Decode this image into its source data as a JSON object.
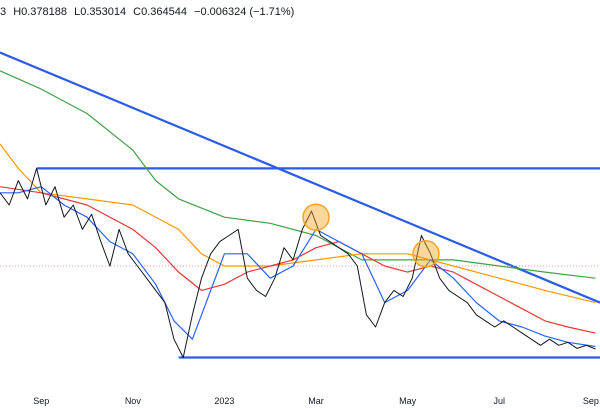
{
  "legend": {
    "open_fragment": "3",
    "high": "H0.378188",
    "low": "L0.353014",
    "close": "C0.364544",
    "change": "−0.006324 (−1.71%)"
  },
  "colors": {
    "price": "#131722",
    "ma_fast": "#2962ff",
    "ma_mid": "#e53935",
    "ma_slow": "#ff9800",
    "ma_long": "#43a047",
    "trendline": "#2a5ce8",
    "highlight": "#f5a623",
    "reference_line": "#ef9a9a"
  },
  "chart_data": {
    "type": "line",
    "title": "",
    "xlabel": "",
    "ylabel": "",
    "x_ticks": [
      "Sep",
      "Nov",
      "2023",
      "Mar",
      "May",
      "Jul",
      "Sep"
    ],
    "x_tick_months": [
      1,
      3,
      5,
      7,
      9,
      11,
      13
    ],
    "x_range_months": [
      0.1,
      13.2
    ],
    "price_range": [
      0.3,
      0.9
    ],
    "grid": false,
    "series": [
      {
        "key": "price",
        "points": [
          [
            0.1,
            0.62
          ],
          [
            0.3,
            0.6
          ],
          [
            0.5,
            0.64
          ],
          [
            0.7,
            0.61
          ],
          [
            0.9,
            0.66
          ],
          [
            1.1,
            0.6
          ],
          [
            1.3,
            0.63
          ],
          [
            1.5,
            0.58
          ],
          [
            1.7,
            0.6
          ],
          [
            1.9,
            0.56
          ],
          [
            2.1,
            0.585
          ],
          [
            2.3,
            0.54
          ],
          [
            2.5,
            0.5
          ],
          [
            2.7,
            0.56
          ],
          [
            2.9,
            0.52
          ],
          [
            3.1,
            0.5
          ],
          [
            3.3,
            0.48
          ],
          [
            3.5,
            0.46
          ],
          [
            3.7,
            0.44
          ],
          [
            3.9,
            0.38
          ],
          [
            4.1,
            0.35
          ],
          [
            4.3,
            0.42
          ],
          [
            4.5,
            0.48
          ],
          [
            4.7,
            0.52
          ],
          [
            4.9,
            0.54
          ],
          [
            5.1,
            0.55
          ],
          [
            5.3,
            0.56
          ],
          [
            5.5,
            0.48
          ],
          [
            5.7,
            0.46
          ],
          [
            5.9,
            0.45
          ],
          [
            6.1,
            0.48
          ],
          [
            6.3,
            0.53
          ],
          [
            6.5,
            0.51
          ],
          [
            6.7,
            0.56
          ],
          [
            6.9,
            0.59
          ],
          [
            7.1,
            0.55
          ],
          [
            7.3,
            0.54
          ],
          [
            7.5,
            0.53
          ],
          [
            7.7,
            0.52
          ],
          [
            7.9,
            0.5
          ],
          [
            8.1,
            0.42
          ],
          [
            8.3,
            0.4
          ],
          [
            8.5,
            0.44
          ],
          [
            8.7,
            0.46
          ],
          [
            8.9,
            0.45
          ],
          [
            9.1,
            0.48
          ],
          [
            9.3,
            0.55
          ],
          [
            9.5,
            0.52
          ],
          [
            9.7,
            0.48
          ],
          [
            9.9,
            0.46
          ],
          [
            10.1,
            0.45
          ],
          [
            10.3,
            0.44
          ],
          [
            10.5,
            0.42
          ],
          [
            10.7,
            0.41
          ],
          [
            10.9,
            0.4
          ],
          [
            11.1,
            0.41
          ],
          [
            11.3,
            0.4
          ],
          [
            11.5,
            0.39
          ],
          [
            11.7,
            0.38
          ],
          [
            11.9,
            0.37
          ],
          [
            12.1,
            0.38
          ],
          [
            12.3,
            0.37
          ],
          [
            12.5,
            0.375
          ],
          [
            12.7,
            0.365
          ],
          [
            12.9,
            0.37
          ],
          [
            13.1,
            0.364
          ]
        ]
      },
      {
        "key": "ma_fast",
        "points": [
          [
            0.1,
            0.62
          ],
          [
            0.5,
            0.62
          ],
          [
            1.0,
            0.63
          ],
          [
            1.5,
            0.6
          ],
          [
            2.0,
            0.58
          ],
          [
            2.5,
            0.54
          ],
          [
            3.0,
            0.52
          ],
          [
            3.5,
            0.47
          ],
          [
            3.9,
            0.41
          ],
          [
            4.3,
            0.38
          ],
          [
            4.7,
            0.46
          ],
          [
            5.0,
            0.52
          ],
          [
            5.5,
            0.52
          ],
          [
            6.0,
            0.48
          ],
          [
            6.5,
            0.5
          ],
          [
            7.0,
            0.56
          ],
          [
            7.5,
            0.54
          ],
          [
            8.0,
            0.52
          ],
          [
            8.5,
            0.44
          ],
          [
            9.0,
            0.46
          ],
          [
            9.5,
            0.51
          ],
          [
            10.0,
            0.48
          ],
          [
            10.5,
            0.44
          ],
          [
            11.0,
            0.41
          ],
          [
            11.5,
            0.4
          ],
          [
            12.0,
            0.385
          ],
          [
            12.5,
            0.375
          ],
          [
            13.1,
            0.368
          ]
        ]
      },
      {
        "key": "ma_mid",
        "points": [
          [
            0.1,
            0.63
          ],
          [
            1.0,
            0.62
          ],
          [
            2.0,
            0.6
          ],
          [
            3.0,
            0.56
          ],
          [
            3.5,
            0.53
          ],
          [
            4.0,
            0.49
          ],
          [
            4.5,
            0.46
          ],
          [
            5.0,
            0.47
          ],
          [
            5.5,
            0.49
          ],
          [
            6.0,
            0.5
          ],
          [
            6.5,
            0.51
          ],
          [
            7.0,
            0.53
          ],
          [
            7.5,
            0.54
          ],
          [
            8.0,
            0.52
          ],
          [
            8.5,
            0.5
          ],
          [
            9.0,
            0.49
          ],
          [
            9.5,
            0.5
          ],
          [
            10.0,
            0.49
          ],
          [
            10.5,
            0.47
          ],
          [
            11.0,
            0.45
          ],
          [
            11.5,
            0.43
          ],
          [
            12.0,
            0.41
          ],
          [
            12.5,
            0.4
          ],
          [
            13.1,
            0.39
          ]
        ]
      },
      {
        "key": "ma_slow",
        "points": [
          [
            0.1,
            0.7
          ],
          [
            0.5,
            0.66
          ],
          [
            1.0,
            0.62
          ],
          [
            2.0,
            0.61
          ],
          [
            3.0,
            0.6
          ],
          [
            4.0,
            0.56
          ],
          [
            4.5,
            0.52
          ],
          [
            5.0,
            0.5
          ],
          [
            6.0,
            0.5
          ],
          [
            7.0,
            0.51
          ],
          [
            8.0,
            0.52
          ],
          [
            9.0,
            0.52
          ],
          [
            10.0,
            0.5
          ],
          [
            11.0,
            0.48
          ],
          [
            12.0,
            0.46
          ],
          [
            13.1,
            0.44
          ]
        ]
      },
      {
        "key": "ma_long",
        "points": [
          [
            0.1,
            0.82
          ],
          [
            1.0,
            0.79
          ],
          [
            2.0,
            0.75
          ],
          [
            3.0,
            0.69
          ],
          [
            3.5,
            0.64
          ],
          [
            4.0,
            0.61
          ],
          [
            5.0,
            0.58
          ],
          [
            6.0,
            0.57
          ],
          [
            7.0,
            0.55
          ],
          [
            8.0,
            0.51
          ],
          [
            9.0,
            0.51
          ],
          [
            10.0,
            0.51
          ],
          [
            11.0,
            0.5
          ],
          [
            12.0,
            0.49
          ],
          [
            13.1,
            0.48
          ]
        ]
      }
    ],
    "reference_lines": [
      {
        "key": "descending-trendline",
        "style": "solid",
        "from": [
          0.1,
          0.85
        ],
        "to": [
          13.2,
          0.44
        ]
      },
      {
        "key": "range-top-line",
        "style": "solid",
        "from": [
          0.9,
          0.66
        ],
        "to": [
          13.2,
          0.66
        ]
      },
      {
        "key": "range-bottom-line",
        "style": "solid",
        "from": [
          4.0,
          0.35
        ],
        "to": [
          13.2,
          0.35
        ]
      },
      {
        "key": "dotted-price-line",
        "style": "dotted",
        "from": [
          0.1,
          0.5
        ],
        "to": [
          13.2,
          0.5
        ]
      }
    ],
    "highlights": [
      {
        "key": "highlight-circle-apr",
        "at": [
          7.0,
          0.58
        ]
      },
      {
        "key": "highlight-circle-jul",
        "at": [
          9.4,
          0.52
        ]
      }
    ]
  }
}
